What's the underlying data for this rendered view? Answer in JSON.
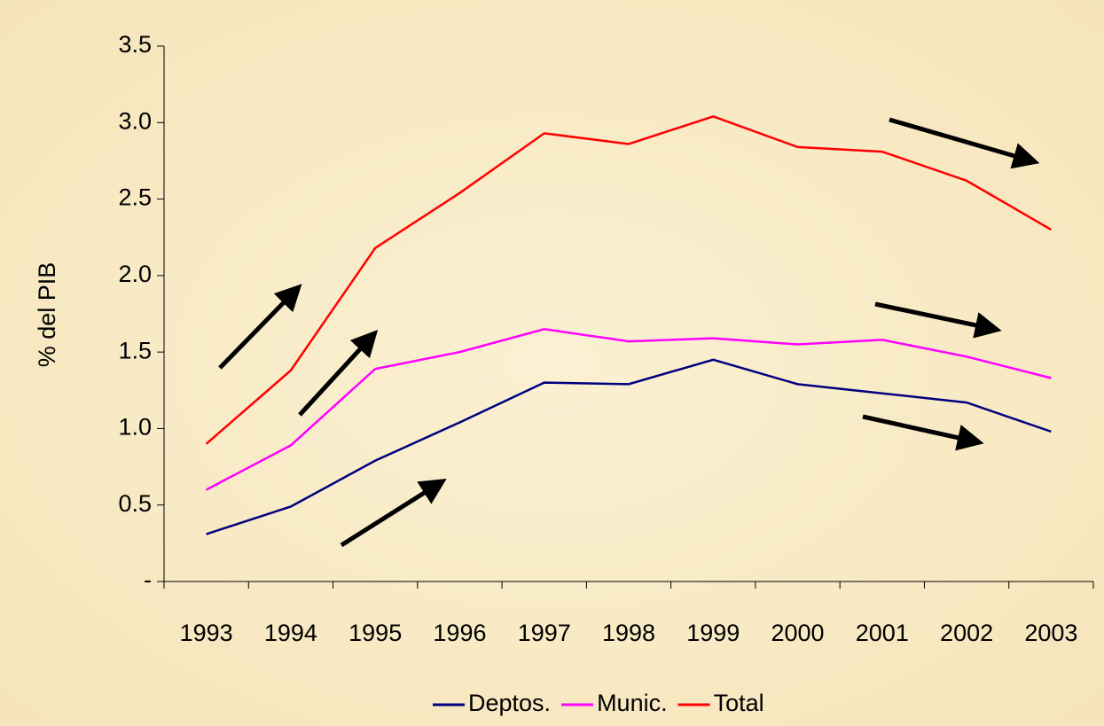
{
  "chart_data": {
    "type": "line",
    "y_label": "% del PIB",
    "categories": [
      "1993",
      "1994",
      "1995",
      "1996",
      "1997",
      "1998",
      "1999",
      "2000",
      "2001",
      "2002",
      "2003"
    ],
    "series": [
      {
        "name": "Deptos.",
        "color": "#000080",
        "values": [
          0.31,
          0.49,
          0.79,
          1.04,
          1.3,
          1.29,
          1.45,
          1.29,
          1.23,
          1.17,
          0.98
        ]
      },
      {
        "name": "Munic.",
        "color": "#ff00ff",
        "values": [
          0.6,
          0.89,
          1.39,
          1.5,
          1.65,
          1.57,
          1.59,
          1.55,
          1.58,
          1.47,
          1.33
        ]
      },
      {
        "name": "Total",
        "color": "#ff0000",
        "values": [
          0.9,
          1.38,
          2.18,
          2.54,
          2.93,
          2.86,
          3.04,
          2.84,
          2.81,
          2.62,
          2.3
        ]
      }
    ],
    "ylim": [
      0,
      3.5
    ],
    "yticks": [
      {
        "value": 0,
        "label": "-"
      },
      0.5,
      {
        "value": 1,
        "label": "1.0"
      },
      1.5,
      {
        "value": 2,
        "label": "2.0"
      },
      2.5,
      {
        "value": 3,
        "label": "3.0"
      },
      3.5
    ],
    "legend": "bottom"
  }
}
